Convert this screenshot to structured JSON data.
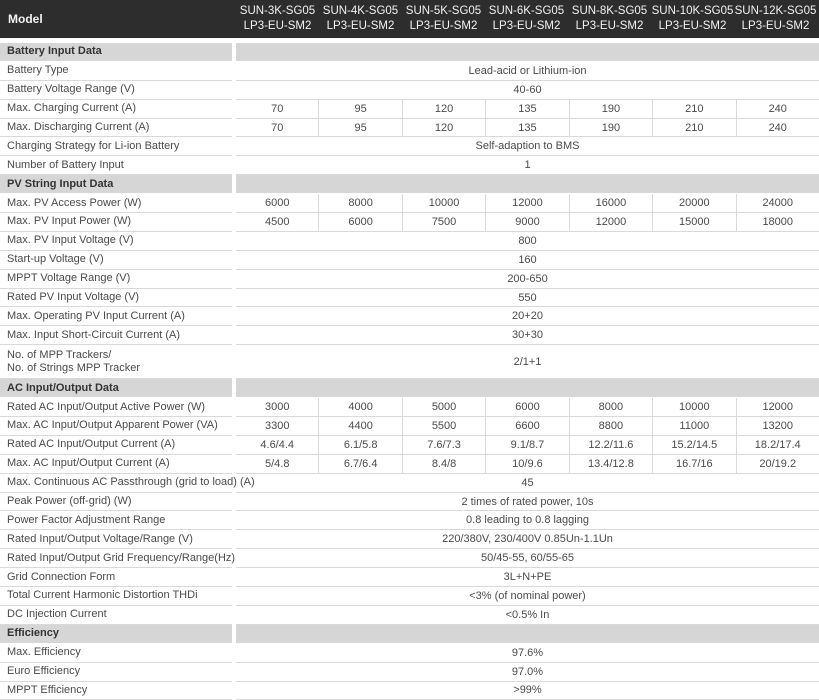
{
  "header": {
    "label": "Model",
    "models": [
      [
        "SUN-3K-SG05",
        "LP3-EU-SM2"
      ],
      [
        "SUN-4K-SG05",
        "LP3-EU-SM2"
      ],
      [
        "SUN-5K-SG05",
        "LP3-EU-SM2"
      ],
      [
        "SUN-6K-SG05",
        "LP3-EU-SM2"
      ],
      [
        "SUN-8K-SG05",
        "LP3-EU-SM2"
      ],
      [
        "SUN-10K-SG05",
        "LP3-EU-SM2"
      ],
      [
        "SUN-12K-SG05",
        "LP3-EU-SM2"
      ]
    ]
  },
  "sections": [
    {
      "title": "Battery Input Data",
      "rows": [
        {
          "label": "Battery Type",
          "value": "Lead-acid or Lithium-ion"
        },
        {
          "label": "Battery Voltage Range (V)",
          "value": "40-60"
        },
        {
          "label": "Max. Charging Current (A)",
          "values": [
            "70",
            "95",
            "120",
            "135",
            "190",
            "210",
            "240"
          ]
        },
        {
          "label": "Max. Discharging Current (A)",
          "values": [
            "70",
            "95",
            "120",
            "135",
            "190",
            "210",
            "240"
          ]
        },
        {
          "label": "Charging Strategy for Li-ion Battery",
          "value": "Self-adaption to BMS"
        },
        {
          "label": "Number of Battery Input",
          "value": "1"
        }
      ]
    },
    {
      "title": "PV String Input Data",
      "rows": [
        {
          "label": "Max. PV Access Power (W)",
          "values": [
            "6000",
            "8000",
            "10000",
            "12000",
            "16000",
            "20000",
            "24000"
          ]
        },
        {
          "label": "Max. PV Input Power (W)",
          "values": [
            "4500",
            "6000",
            "7500",
            "9000",
            "12000",
            "15000",
            "18000"
          ]
        },
        {
          "label": "Max. PV Input Voltage (V)",
          "value": "800"
        },
        {
          "label": "Start-up Voltage (V)",
          "value": "160"
        },
        {
          "label": "MPPT  Voltage Range (V)",
          "value": "200-650"
        },
        {
          "label": "Rated PV Input Voltage (V)",
          "value": "550"
        },
        {
          "label": "Max. Operating PV Input Current (A)",
          "value": "20+20"
        },
        {
          "label": "Max. Input Short-Circuit Current (A)",
          "value": "30+30"
        },
        {
          "label": "No. of MPP Trackers/",
          "label2": "No. of Strings MPP Tracker",
          "value": "2/1+1"
        }
      ]
    },
    {
      "title": "AC Input/Output Data",
      "rows": [
        {
          "label": "Rated AC Input/Output Active Power (W)",
          "values": [
            "3000",
            "4000",
            "5000",
            "6000",
            "8000",
            "10000",
            "12000"
          ]
        },
        {
          "label": "Max. AC Input/Output Apparent Power (VA)",
          "values": [
            "3300",
            "4400",
            "5500",
            "6600",
            "8800",
            "11000",
            "13200"
          ]
        },
        {
          "label": "Rated AC Input/Output Current (A)",
          "values": [
            "4.6/4.4",
            "6.1/5.8",
            "7.6/7.3",
            "9.1/8.7",
            "12.2/11.6",
            "15.2/14.5",
            "18.2/17.4"
          ]
        },
        {
          "label": "Max. AC Input/Output Current (A)",
          "values": [
            "5/4.8",
            "6.7/6.4",
            "8.4/8",
            "10/9.6",
            "13.4/12.8",
            "16.7/16",
            "20/19.2"
          ]
        },
        {
          "label": "Max. Continuous AC Passthrough (grid to load) (A)",
          "value": "45"
        },
        {
          "label": "Peak Power (off-grid) (W)",
          "value": "2 times of rated power, 10s"
        },
        {
          "label": "Power Factor Adjustment Range",
          "value": "0.8 leading to 0.8 lagging"
        },
        {
          "label": "Rated Input/Output Voltage/Range (V)",
          "value": "220/380V, 230/400V  0.85Un-1.1Un"
        },
        {
          "label": "Rated Input/Output Grid Frequency/Range(Hz)",
          "value": "50/45-55, 60/55-65"
        },
        {
          "label": "Grid Connection Form",
          "value": "3L+N+PE"
        },
        {
          "label": "Total Current Harmonic Distortion THDi",
          "value": "<3% (of nominal power)"
        },
        {
          "label": "DC Injection Current",
          "value": "<0.5% In"
        }
      ]
    },
    {
      "title": "Efficiency",
      "rows": [
        {
          "label": "Max. Efficiency",
          "value": "97.6%"
        },
        {
          "label": "Euro Efficiency",
          "value": "97.0%"
        },
        {
          "label": "MPPT Efficiency",
          "value": ">99%"
        }
      ]
    }
  ]
}
